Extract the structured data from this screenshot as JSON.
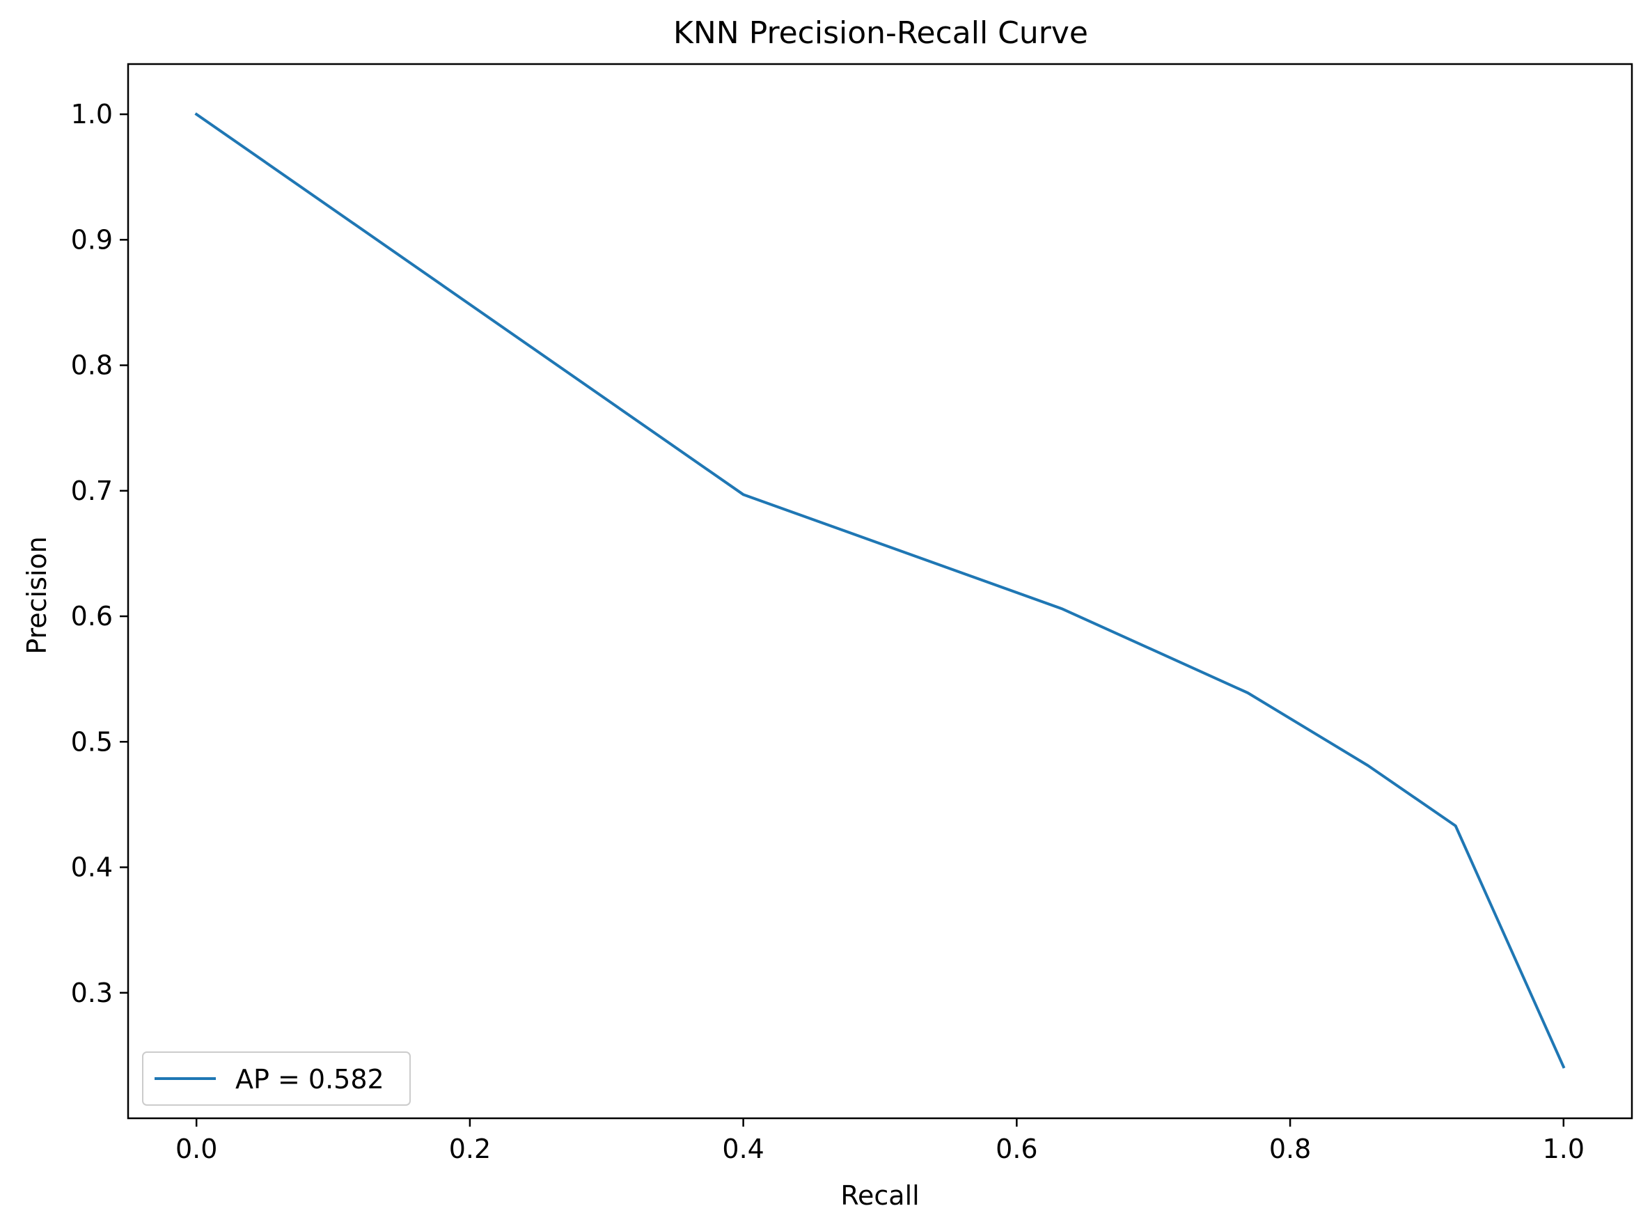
{
  "chart_data": {
    "type": "line",
    "title": "KNN Precision-Recall Curve",
    "xlabel": "Recall",
    "ylabel": "Precision",
    "xlim": [
      -0.05,
      1.05
    ],
    "ylim": [
      0.2,
      1.04
    ],
    "xticks": [
      {
        "value": 0.0,
        "label": "0.0"
      },
      {
        "value": 0.2,
        "label": "0.2"
      },
      {
        "value": 0.4,
        "label": "0.4"
      },
      {
        "value": 0.6,
        "label": "0.6"
      },
      {
        "value": 0.8,
        "label": "0.8"
      },
      {
        "value": 1.0,
        "label": "1.0"
      }
    ],
    "yticks": [
      {
        "value": 0.3,
        "label": "0.3"
      },
      {
        "value": 0.4,
        "label": "0.4"
      },
      {
        "value": 0.5,
        "label": "0.5"
      },
      {
        "value": 0.6,
        "label": "0.6"
      },
      {
        "value": 0.7,
        "label": "0.7"
      },
      {
        "value": 0.8,
        "label": "0.8"
      },
      {
        "value": 0.9,
        "label": "0.9"
      },
      {
        "value": 1.0,
        "label": "1.0"
      }
    ],
    "grid": false,
    "legend_position": "lower-left",
    "series": [
      {
        "name": "AP = 0.582",
        "color": "#1f77b4",
        "points": [
          {
            "x": 0.0,
            "y": 1.0
          },
          {
            "x": 0.4,
            "y": 0.697
          },
          {
            "x": 0.633,
            "y": 0.606
          },
          {
            "x": 0.769,
            "y": 0.539
          },
          {
            "x": 0.857,
            "y": 0.481
          },
          {
            "x": 0.921,
            "y": 0.433
          },
          {
            "x": 1.0,
            "y": 0.241
          }
        ]
      }
    ]
  }
}
